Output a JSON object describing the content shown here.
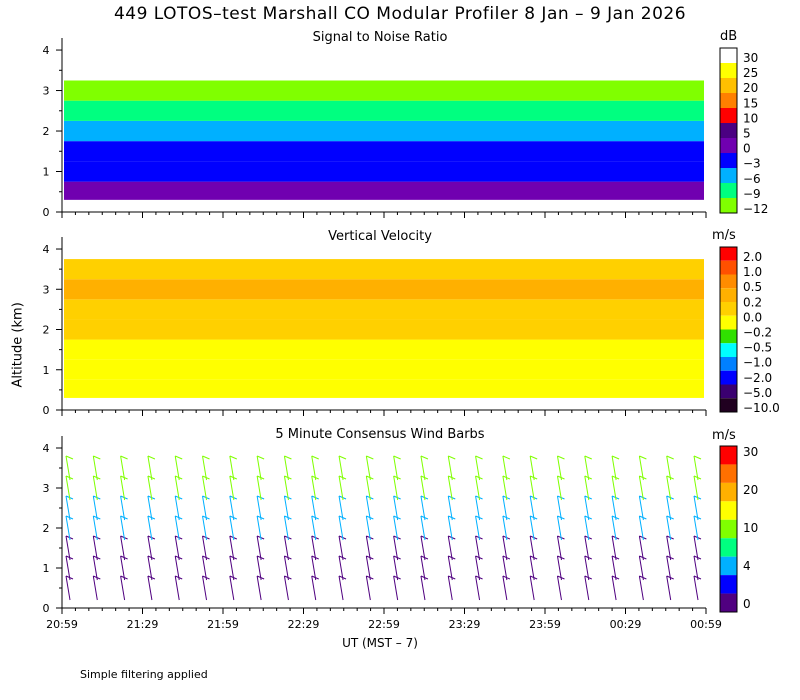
{
  "title": "449 LOTOS–test Marshall CO Modular Profiler  8 Jan –  9 Jan 2026",
  "footnote": "Simple filtering applied",
  "xlabel": "UT  (MST – 7)",
  "ylabel": "Altitude (km)",
  "chart_data": [
    {
      "type": "heatmap",
      "title": "Signal to Noise Ratio",
      "unit": "dB",
      "x_ticks": [
        "20:59",
        "21:29",
        "21:59",
        "22:29",
        "22:59",
        "23:29",
        "23:59",
        "00:29",
        "00:59"
      ],
      "y_ticks": [
        "0",
        "1",
        "2",
        "3",
        "4"
      ],
      "ylim": [
        0,
        4.1
      ],
      "colorbar": {
        "labels": [
          "30",
          "25",
          "20",
          "15",
          "10",
          "5",
          "0",
          "−3",
          "−6",
          "−9",
          "−12"
        ],
        "colors": [
          "#ffffff",
          "#ffff00",
          "#ffc000",
          "#ff8000",
          "#ff0000",
          "#4b0082",
          "#7000b0",
          "#0000ff",
          "#00b0ff",
          "#00ff80",
          "#80ff00"
        ]
      },
      "profile_by_altitude_km": [
        {
          "altitude": 0.5,
          "value": 0
        },
        {
          "altitude": 1.0,
          "value": -3
        },
        {
          "altitude": 1.5,
          "value": -3
        },
        {
          "altitude": 2.0,
          "value": -6
        },
        {
          "altitude": 2.5,
          "value": -9
        },
        {
          "altitude": 3.0,
          "value": -12
        },
        {
          "altitude": 3.5,
          "value": 30
        }
      ]
    },
    {
      "type": "heatmap",
      "title": "Vertical Velocity",
      "unit": "m/s",
      "x_ticks": [
        "20:59",
        "21:29",
        "21:59",
        "22:29",
        "22:59",
        "23:29",
        "23:59",
        "00:29",
        "00:59"
      ],
      "y_ticks": [
        "0",
        "1",
        "2",
        "3",
        "4"
      ],
      "ylim": [
        0,
        4.1
      ],
      "colorbar": {
        "labels": [
          "2.0",
          "1.0",
          "0.5",
          "0.2",
          "0.0",
          "−0.2",
          "−0.5",
          "−1.0",
          "−2.0",
          "−5.0",
          "−10.0"
        ],
        "colors": [
          "#ff0000",
          "#ff5000",
          "#ff8c00",
          "#ffb000",
          "#ffd000",
          "#ffff00",
          "#30e000",
          "#00ffff",
          "#0080ff",
          "#0000ff",
          "#3a0070",
          "#200020"
        ]
      },
      "profile_by_altitude_km": [
        {
          "altitude": 0.5,
          "value": -0.2
        },
        {
          "altitude": 1.0,
          "value": -0.2
        },
        {
          "altitude": 1.5,
          "value": -0.2
        },
        {
          "altitude": 2.0,
          "value": 0.0
        },
        {
          "altitude": 2.5,
          "value": 0.0
        },
        {
          "altitude": 3.0,
          "value": 0.2
        },
        {
          "altitude": 3.5,
          "value": 0.0
        }
      ]
    },
    {
      "type": "scatter",
      "title": "5 Minute Consensus Wind Barbs",
      "unit": "m/s",
      "x_ticks": [
        "20:59",
        "21:29",
        "21:59",
        "22:29",
        "22:59",
        "23:29",
        "23:59",
        "00:29",
        "00:59"
      ],
      "y_ticks": [
        "0",
        "1",
        "2",
        "3",
        "4"
      ],
      "ylim": [
        0,
        4.1
      ],
      "colorbar": {
        "labels": [
          "30",
          "20",
          "10",
          "4",
          "0"
        ],
        "colors": [
          "#ff0000",
          "#ff7000",
          "#ffb000",
          "#ffff00",
          "#80ff00",
          "#00ff80",
          "#00b0ff",
          "#0000ff",
          "#500080"
        ]
      },
      "speed_by_altitude_km": [
        {
          "altitude": 0.5,
          "value": 2
        },
        {
          "altitude": 1.0,
          "value": 2
        },
        {
          "altitude": 1.5,
          "value": 3
        },
        {
          "altitude": 2.0,
          "value": 4
        },
        {
          "altitude": 2.5,
          "value": 6
        },
        {
          "altitude": 3.0,
          "value": 10
        },
        {
          "altitude": 3.5,
          "value": 12
        }
      ]
    }
  ]
}
